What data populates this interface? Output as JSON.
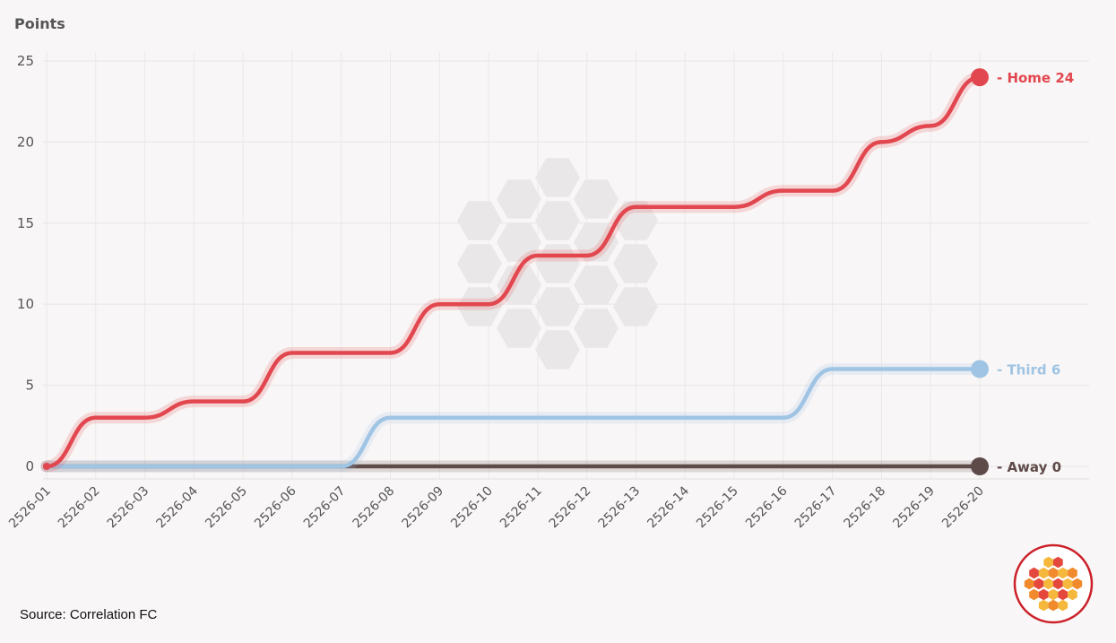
{
  "chart_data": {
    "type": "line",
    "ylabel": "Points",
    "ylim": [
      0,
      25
    ],
    "yticks": [
      0,
      5,
      10,
      15,
      20,
      25
    ],
    "categories": [
      "2526-01",
      "2526-02",
      "2526-03",
      "2526-04",
      "2526-05",
      "2526-06",
      "2526-07",
      "2526-08",
      "2526-09",
      "2526-10",
      "2526-11",
      "2526-12",
      "2526-13",
      "2526-14",
      "2526-15",
      "2526-16",
      "2526-17",
      "2526-18",
      "2526-19",
      "2526-20"
    ],
    "series": [
      {
        "name": "Away",
        "end_label": "- Away 0",
        "color": "#5e4a48",
        "values": [
          0,
          0,
          0,
          0,
          0,
          0,
          0,
          0,
          0,
          0,
          0,
          0,
          0,
          0,
          0,
          0,
          0,
          0,
          0,
          0
        ]
      },
      {
        "name": "Third",
        "end_label": "- Third 6",
        "color": "#9fc4e4",
        "values": [
          0,
          0,
          0,
          0,
          0,
          0,
          0,
          3,
          3,
          3,
          3,
          3,
          3,
          3,
          3,
          3,
          6,
          6,
          6,
          6
        ]
      },
      {
        "name": "Home",
        "end_label": "- Home 24",
        "color": "#e2474f",
        "values": [
          0,
          3,
          3,
          4,
          4,
          7,
          7,
          7,
          10,
          10,
          13,
          13,
          16,
          16,
          16,
          17,
          17,
          20,
          21,
          24
        ]
      }
    ]
  },
  "source_text": "Source: Correlation FC",
  "colors": {
    "background": "#f8f6f6",
    "grid": "#ebe8e8",
    "watermark": "#e9e7e7",
    "logo_ring": "#cc2029",
    "logo_hex_light": "#f5b73c",
    "logo_hex_mid": "#f08a2c",
    "logo_hex_dark": "#e4473b"
  }
}
